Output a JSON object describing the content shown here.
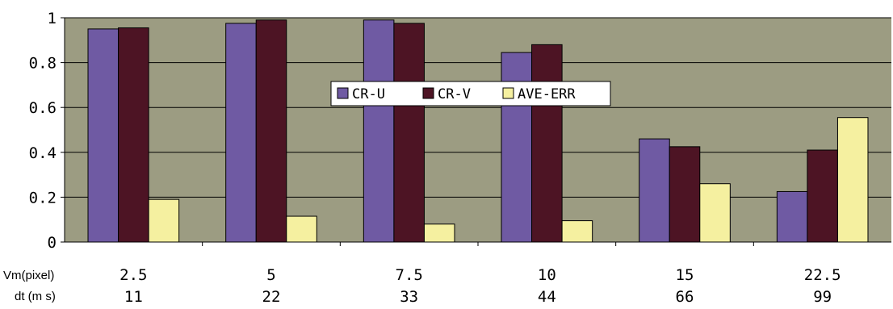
{
  "chart_data": {
    "type": "bar",
    "title": "",
    "xlabel": "",
    "ylabel": "",
    "ylim": [
      0,
      1
    ],
    "yticks": [
      "0",
      "0.2",
      "0.4",
      "0.6",
      "0.8",
      "1"
    ],
    "grid": true,
    "legend_position": "center",
    "row_labels": [
      "Vm(pixel)",
      "dt (m s)"
    ],
    "categories": [
      "2.5",
      "5",
      "7.5",
      "10",
      "15",
      "22.5"
    ],
    "categories_row2": [
      "11",
      "22",
      "33",
      "44",
      "66",
      "99"
    ],
    "series": [
      {
        "name": "CR-U",
        "color": "#6f5aa3",
        "values": [
          0.95,
          0.975,
          0.99,
          0.845,
          0.46,
          0.225
        ]
      },
      {
        "name": "CR-V",
        "color": "#4d1424",
        "values": [
          0.955,
          0.99,
          0.975,
          0.88,
          0.425,
          0.41
        ]
      },
      {
        "name": "AVE-ERR",
        "color": "#f5f0a0",
        "values": [
          0.19,
          0.115,
          0.08,
          0.095,
          0.26,
          0.555
        ]
      }
    ],
    "plot_bg": "#9c9c82"
  }
}
